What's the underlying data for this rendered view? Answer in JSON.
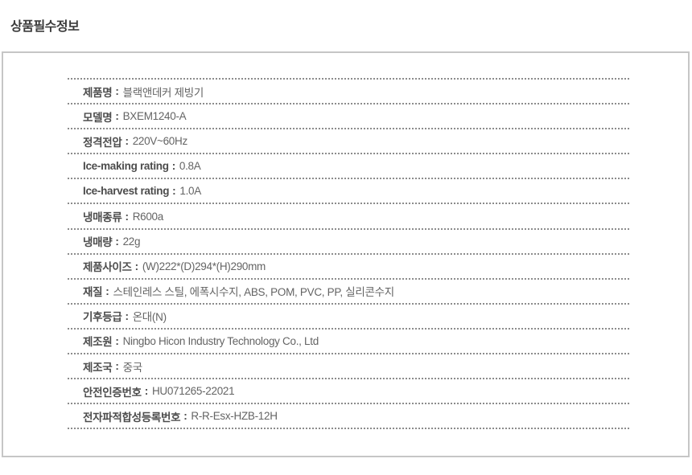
{
  "section": {
    "title": "상품필수정보"
  },
  "separator": ":",
  "rows": [
    {
      "label": "제품명",
      "value": "블랙앤데커 제빙기"
    },
    {
      "label": "모델명",
      "value": "BXEM1240-A"
    },
    {
      "label": "정격전압",
      "value": "220V~60Hz"
    },
    {
      "label": "Ice-making rating",
      "value": "0.8A"
    },
    {
      "label": "Ice-harvest rating",
      "value": "1.0A"
    },
    {
      "label": "냉매종류",
      "value": "R600a"
    },
    {
      "label": "냉매량",
      "value": "22g"
    },
    {
      "label": "제품사이즈",
      "value": "(W)222*(D)294*(H)290mm"
    },
    {
      "label": "재질",
      "value": "스테인레스 스틸, 에폭시수지, ABS, POM, PVC, PP, 실리콘수지"
    },
    {
      "label": "기후등급",
      "value": "온대(N)"
    },
    {
      "label": "제조원",
      "value": "Ningbo Hicon Industry Technology Co., Ltd"
    },
    {
      "label": "제조국",
      "value": "중국"
    },
    {
      "label": "안전인증번호",
      "value": "HU071265-22021"
    },
    {
      "label": "전자파적합성등록번호",
      "value": "R-R-Esx-HZB-12H"
    }
  ],
  "colors": {
    "title_text": "#3c3c3c",
    "label_text": "#4c4c4c",
    "value_text": "#646464",
    "dotted_line": "#8c8c8c",
    "box_border": "#c6c6c6",
    "background": "#ffffff"
  }
}
